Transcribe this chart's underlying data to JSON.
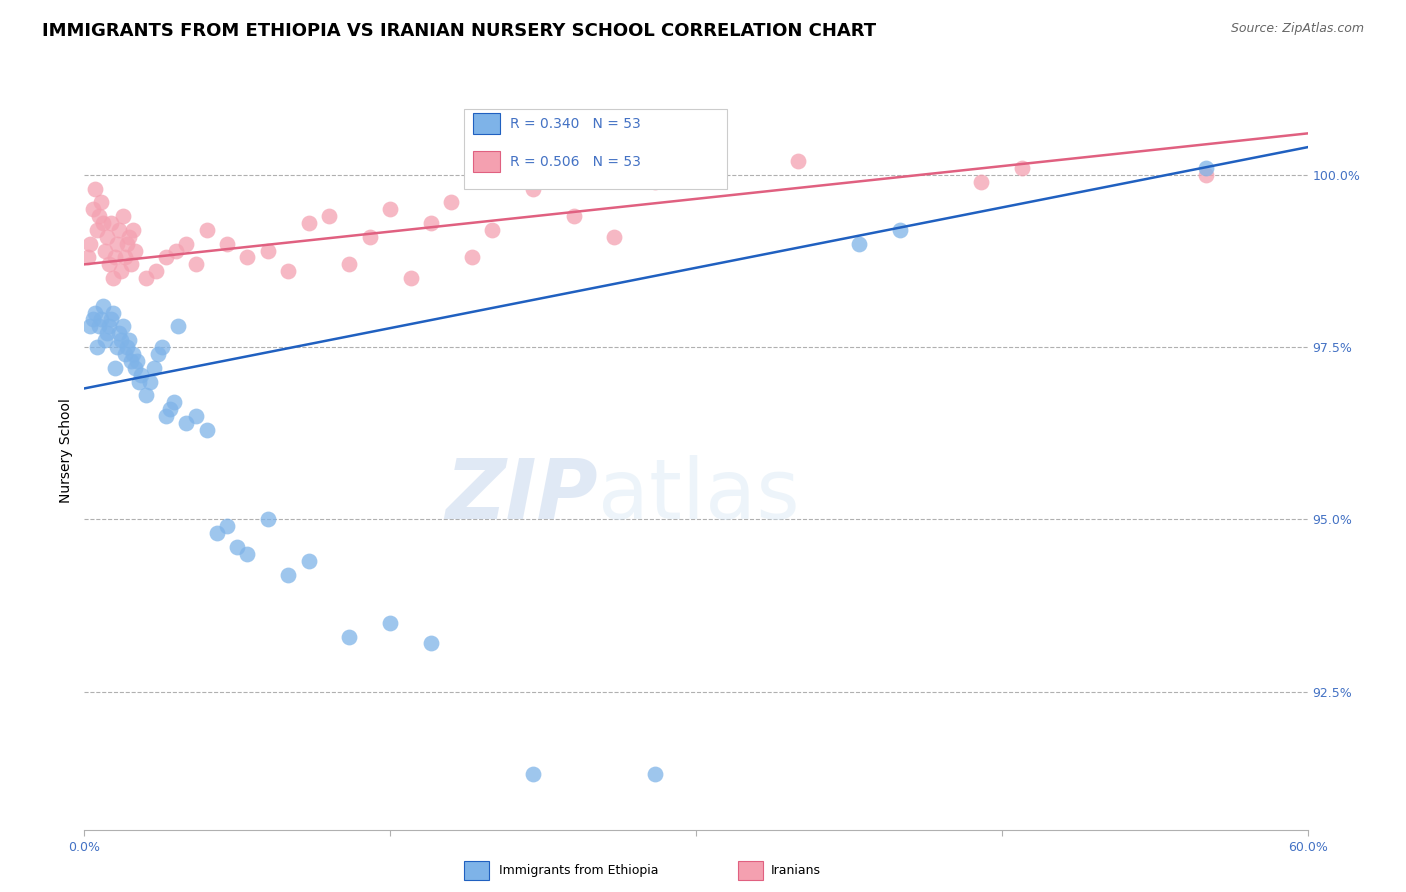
{
  "title": "IMMIGRANTS FROM ETHIOPIA VS IRANIAN NURSERY SCHOOL CORRELATION CHART",
  "source": "Source: ZipAtlas.com",
  "ylabel": "Nursery School",
  "x_range": [
    0.0,
    60.0
  ],
  "y_range": [
    90.5,
    101.5
  ],
  "legend_r_blue": "R = 0.340",
  "legend_n_blue": "N = 53",
  "legend_r_pink": "R = 0.506",
  "legend_n_pink": "N = 53",
  "blue_color": "#7EB3E8",
  "pink_color": "#F4A0B0",
  "line_blue": "#2060C0",
  "line_pink": "#E06080",
  "blue_line_x": [
    0.0,
    60.0
  ],
  "blue_line_y": [
    96.9,
    100.4
  ],
  "pink_line_x": [
    0.0,
    60.0
  ],
  "pink_line_y": [
    98.7,
    100.6
  ],
  "blue_points_x": [
    0.3,
    0.4,
    0.5,
    0.6,
    0.7,
    0.8,
    0.9,
    1.0,
    1.1,
    1.2,
    1.3,
    1.4,
    1.5,
    1.6,
    1.7,
    1.8,
    1.9,
    2.0,
    2.1,
    2.2,
    2.3,
    2.4,
    2.5,
    2.6,
    2.7,
    2.8,
    3.0,
    3.2,
    3.4,
    3.6,
    3.8,
    4.0,
    4.2,
    4.4,
    4.6,
    5.0,
    5.5,
    6.0,
    6.5,
    7.0,
    7.5,
    8.0,
    9.0,
    10.0,
    11.0,
    13.0,
    15.0,
    17.0,
    22.0,
    28.0,
    38.0,
    40.0,
    55.0
  ],
  "blue_points_y": [
    97.8,
    97.9,
    98.0,
    97.5,
    97.8,
    97.9,
    98.1,
    97.6,
    97.7,
    97.8,
    97.9,
    98.0,
    97.2,
    97.5,
    97.7,
    97.6,
    97.8,
    97.4,
    97.5,
    97.6,
    97.3,
    97.4,
    97.2,
    97.3,
    97.0,
    97.1,
    96.8,
    97.0,
    97.2,
    97.4,
    97.5,
    96.5,
    96.6,
    96.7,
    97.8,
    96.4,
    96.5,
    96.3,
    94.8,
    94.9,
    94.6,
    94.5,
    95.0,
    94.2,
    94.4,
    93.3,
    93.5,
    93.2,
    91.3,
    91.3,
    99.0,
    99.2,
    100.1
  ],
  "pink_points_x": [
    0.2,
    0.3,
    0.4,
    0.5,
    0.6,
    0.7,
    0.8,
    0.9,
    1.0,
    1.1,
    1.2,
    1.3,
    1.4,
    1.5,
    1.6,
    1.7,
    1.8,
    1.9,
    2.0,
    2.1,
    2.2,
    2.3,
    2.4,
    2.5,
    3.0,
    3.5,
    4.0,
    4.5,
    5.0,
    5.5,
    6.0,
    7.0,
    8.0,
    9.0,
    10.0,
    11.0,
    12.0,
    13.0,
    14.0,
    15.0,
    16.0,
    17.0,
    18.0,
    19.0,
    20.0,
    22.0,
    24.0,
    26.0,
    28.0,
    35.0,
    44.0,
    46.0,
    55.0
  ],
  "pink_points_y": [
    98.8,
    99.0,
    99.5,
    99.8,
    99.2,
    99.4,
    99.6,
    99.3,
    98.9,
    99.1,
    98.7,
    99.3,
    98.5,
    98.8,
    99.0,
    99.2,
    98.6,
    99.4,
    98.8,
    99.0,
    99.1,
    98.7,
    99.2,
    98.9,
    98.5,
    98.6,
    98.8,
    98.9,
    99.0,
    98.7,
    99.2,
    99.0,
    98.8,
    98.9,
    98.6,
    99.3,
    99.4,
    98.7,
    99.1,
    99.5,
    98.5,
    99.3,
    99.6,
    98.8,
    99.2,
    99.8,
    99.4,
    99.1,
    99.9,
    100.2,
    99.9,
    100.1,
    100.0
  ],
  "watermark_zip": "ZIP",
  "watermark_atlas": "atlas",
  "title_fontsize": 13,
  "axis_fontsize": 10,
  "tick_fontsize": 9
}
